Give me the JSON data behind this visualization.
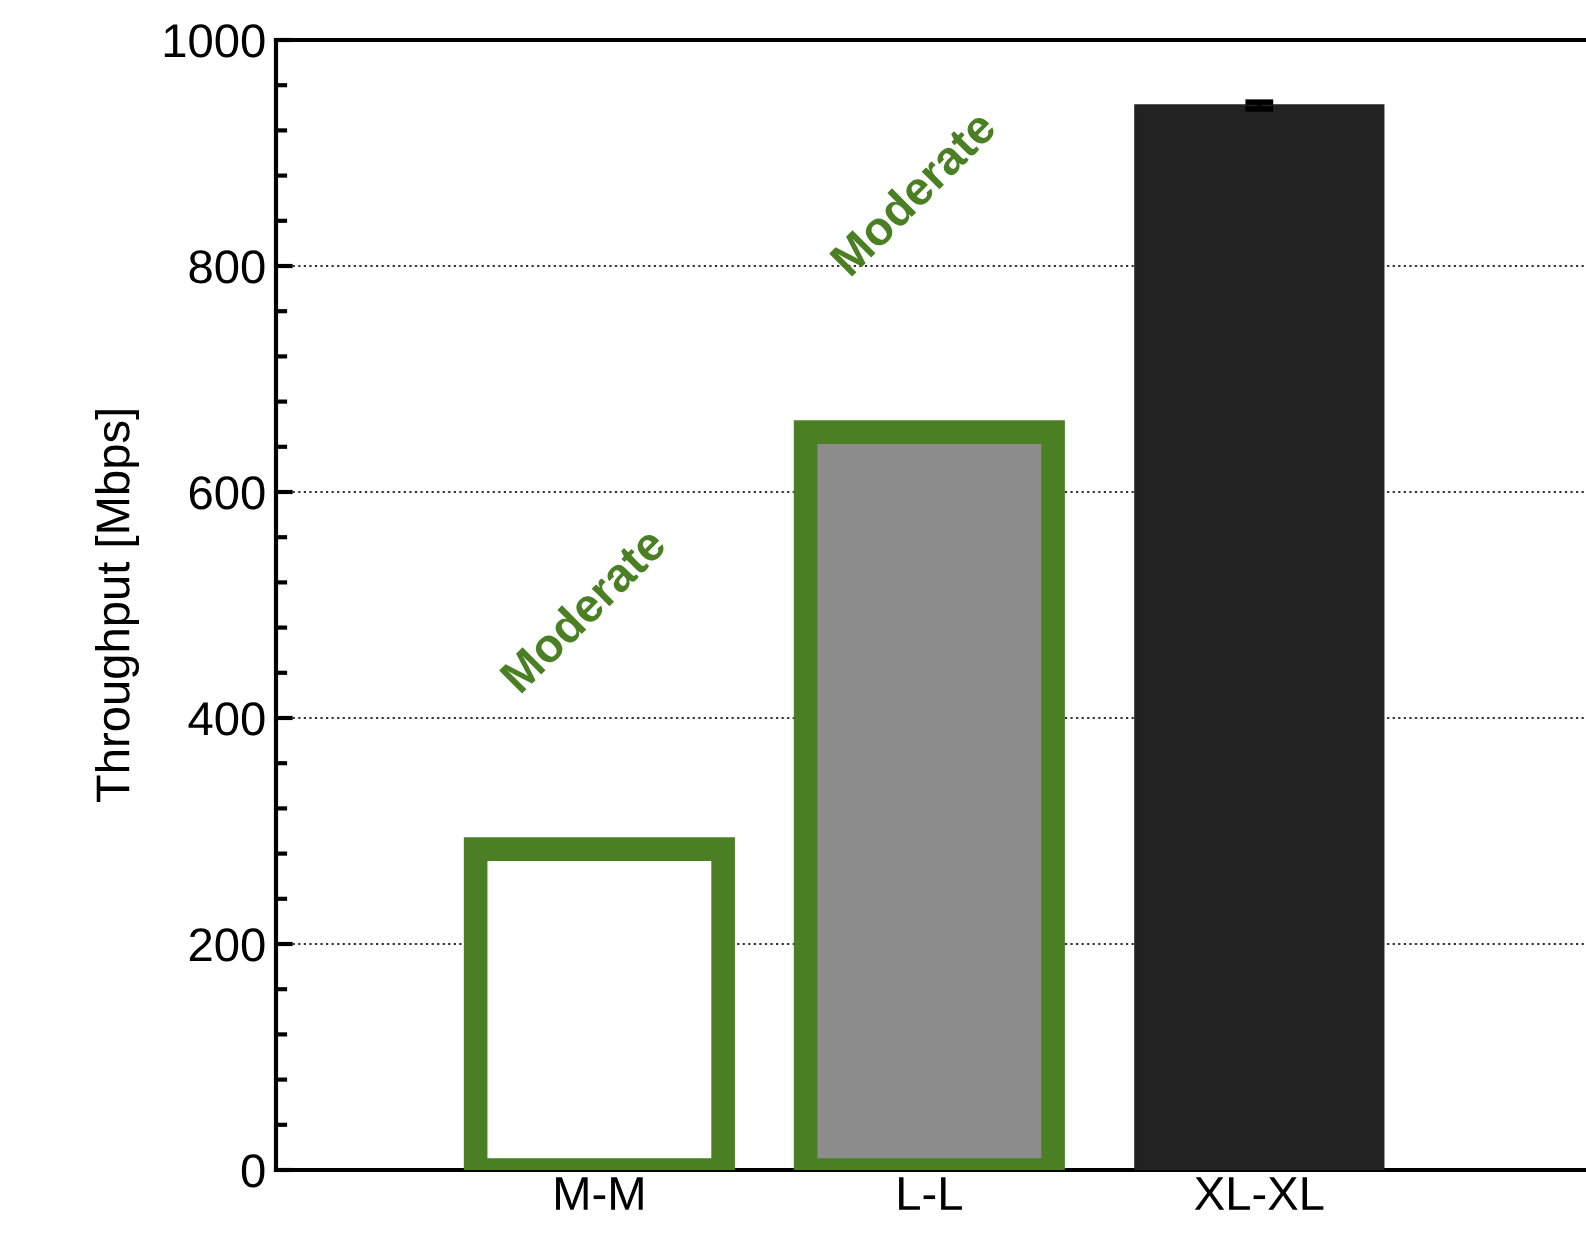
{
  "chart_data": {
    "type": "bar",
    "ylabel": "Throughput [Mbps]",
    "categories": [
      "M-M",
      "L-L",
      "XL-XL"
    ],
    "values": [
      284,
      653,
      942
    ],
    "colors": [
      "#ffffff",
      "#8c8c8c",
      "#222222"
    ],
    "errors": [
      null,
      null,
      3
    ],
    "ylim": [
      0,
      1000
    ],
    "yticks": [
      0,
      200,
      400,
      600,
      800,
      1000
    ],
    "grid": "y",
    "annotations": [
      "Moderate",
      "Moderate"
    ]
  }
}
